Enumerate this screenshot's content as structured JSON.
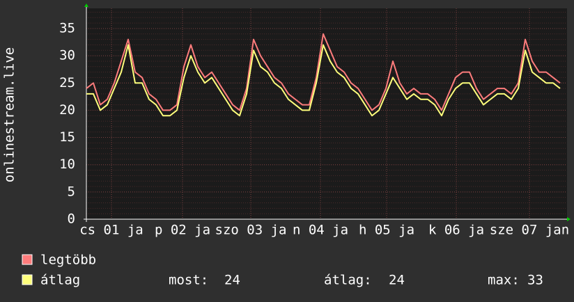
{
  "chart_data": {
    "type": "line",
    "ylabel": "onlinestream.live",
    "x": [
      0,
      1,
      2,
      3,
      4,
      5,
      6,
      7,
      8,
      9,
      10,
      11,
      12,
      13,
      14,
      15,
      16,
      17,
      18,
      19,
      20,
      21,
      22,
      23,
      24,
      25,
      26,
      27,
      28,
      29,
      30,
      31,
      32,
      33,
      34,
      35,
      36,
      37,
      38,
      39,
      40,
      41,
      42,
      43,
      44,
      45,
      46,
      47,
      48,
      49,
      50,
      51,
      52,
      53,
      54,
      55,
      56,
      57,
      58,
      59,
      60,
      61,
      62,
      63,
      64,
      65,
      66,
      67,
      68
    ],
    "xlim": [
      0,
      69
    ],
    "xticks": [
      {
        "value": 3.6,
        "label": "cs 01 ja"
      },
      {
        "value": 13.8,
        "label": "p 02 ja"
      },
      {
        "value": 23.6,
        "label": "szo 03 ja"
      },
      {
        "value": 33.6,
        "label": "n 04 ja"
      },
      {
        "value": 43.1,
        "label": "h 05 ja"
      },
      {
        "value": 53.1,
        "label": "k 06 ja"
      },
      {
        "value": 63.6,
        "label": "sze 07 jan"
      }
    ],
    "ylim": [
      0,
      38.7
    ],
    "yticks": [
      0,
      5,
      10,
      15,
      20,
      25,
      30,
      35
    ],
    "grid": true,
    "series": [
      {
        "name": "legtöbb",
        "color": "#ff7c7c",
        "values": [
          24,
          25,
          21,
          22,
          25,
          29,
          33,
          27,
          26,
          23,
          22,
          20,
          20,
          21,
          28,
          32,
          28,
          26,
          27,
          25,
          23,
          21,
          20,
          24,
          33,
          30,
          28,
          26,
          25,
          23,
          22,
          21,
          21,
          26,
          34,
          31,
          28,
          27,
          25,
          24,
          22,
          20,
          21,
          24,
          29,
          25,
          23,
          24,
          23,
          23,
          22,
          20,
          23,
          26,
          27,
          27,
          24,
          22,
          23,
          24,
          24,
          23,
          25,
          33,
          29,
          27,
          27,
          26,
          25
        ]
      },
      {
        "name": "átlag",
        "color": "#ffff7c",
        "values": [
          23,
          23,
          20,
          21,
          24,
          27,
          32,
          25,
          25,
          22,
          21,
          19,
          19,
          20,
          26,
          30,
          27,
          25,
          26,
          24,
          22,
          20,
          19,
          23,
          31,
          28,
          27,
          25,
          24,
          22,
          21,
          20,
          20,
          25,
          32,
          29,
          27,
          26,
          24,
          23,
          21,
          19,
          20,
          23,
          26,
          24,
          22,
          23,
          22,
          22,
          21,
          19,
          22,
          24,
          25,
          25,
          23,
          21,
          22,
          23,
          23,
          22,
          24,
          31,
          27,
          26,
          25,
          25,
          24
        ]
      }
    ],
    "stats": [
      {
        "label": "most:",
        "value": 24
      },
      {
        "label": "átlag:",
        "value": 24
      },
      {
        "label": "max:",
        "value": 33
      }
    ]
  }
}
